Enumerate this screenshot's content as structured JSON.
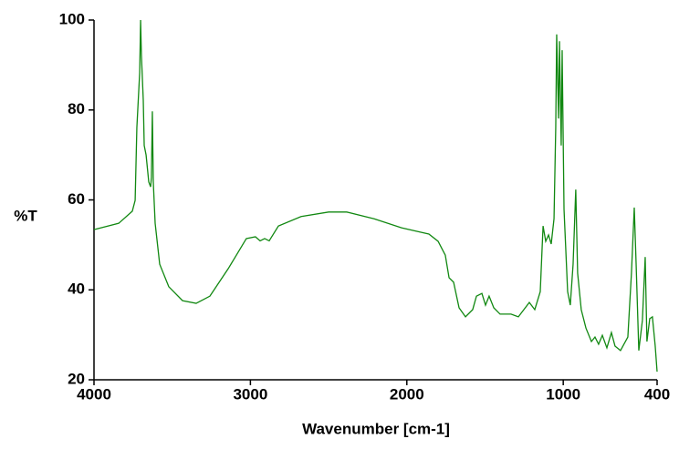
{
  "chart_data": {
    "type": "line",
    "x_label": "Wavenumber [cm-1]",
    "y_label": "%T",
    "xlim": [
      4000,
      400
    ],
    "ylim": [
      20,
      100
    ],
    "xticks": [
      4000,
      3000,
      2000,
      1000,
      400
    ],
    "yticks": [
      20,
      40,
      60,
      80,
      100
    ],
    "series": [
      {
        "color": "#118811",
        "x": [
          4000,
          3842,
          3755,
          3737,
          3726,
          3708,
          3702,
          3697,
          3685,
          3679,
          3667,
          3650,
          3638,
          3633,
          3627,
          3621,
          3609,
          3580,
          3522,
          3434,
          3347,
          3259,
          3142,
          3026,
          2968,
          2938,
          2909,
          2880,
          2821,
          2676,
          2500,
          2384,
          2209,
          2034,
          1859,
          1800,
          1754,
          1730,
          1701,
          1666,
          1625,
          1579,
          1555,
          1520,
          1497,
          1474,
          1444,
          1404,
          1334,
          1287,
          1252,
          1217,
          1182,
          1147,
          1129,
          1112,
          1094,
          1077,
          1059,
          1048,
          1042,
          1030,
          1024,
          1013,
          1007,
          995,
          972,
          955,
          937,
          920,
          908,
          885,
          855,
          820,
          797,
          774,
          750,
          721,
          692,
          669,
          634,
          587,
          564,
          546,
          534,
          517,
          494,
          476,
          465,
          447,
          430,
          412,
          400
        ],
        "values": [
          53.4,
          54.8,
          57.5,
          59.9,
          76.1,
          88.3,
          100,
          92.3,
          82.2,
          72.1,
          70,
          64,
          62.9,
          65,
          79.7,
          64,
          54.8,
          45.7,
          40.7,
          37.6,
          37,
          38.6,
          44.7,
          51.4,
          51.8,
          50.9,
          51.4,
          50.9,
          54.2,
          56.3,
          57.3,
          57.3,
          55.8,
          53.8,
          52.4,
          50.8,
          47.7,
          42.7,
          41.7,
          36,
          34,
          35.6,
          38.6,
          39.2,
          36.6,
          38.6,
          36,
          34.6,
          34.6,
          34,
          35.6,
          37.2,
          35.6,
          39.6,
          54.2,
          50.8,
          52.2,
          50.2,
          55.8,
          76.1,
          96.8,
          78.1,
          95.3,
          72.1,
          93.3,
          57.9,
          39.6,
          36.6,
          45.7,
          62.3,
          43.7,
          35.6,
          31.5,
          28.5,
          29.5,
          27.9,
          29.9,
          27.1,
          30.5,
          27.5,
          26.5,
          29.5,
          43.7,
          58.3,
          45.7,
          26.5,
          33.2,
          47.3,
          28.5,
          33.6,
          34,
          27.5,
          21.8
        ]
      }
    ]
  }
}
